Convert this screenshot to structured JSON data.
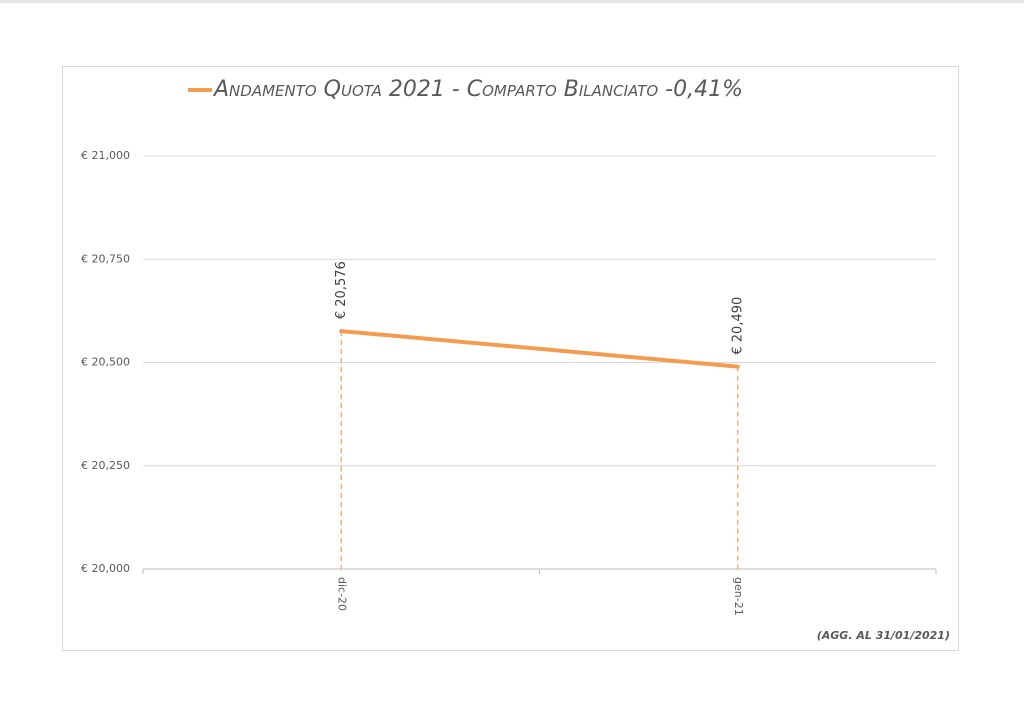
{
  "chart_data": {
    "type": "line",
    "categories": [
      "dic-20",
      "gen-21"
    ],
    "series": [
      {
        "name": "Andamento Quota 2021 - Comparto Bilanciato -0,41%",
        "color": "#f39c4f",
        "values": [
          20.576,
          20.49
        ],
        "value_labels": [
          "€ 20,576",
          "€ 20,490"
        ]
      }
    ],
    "ylim": [
      20,
      21
    ],
    "yticks": [
      {
        "value": 20,
        "label": "€ 20,000"
      },
      {
        "value": 20.25,
        "label": "€ 20,250"
      },
      {
        "value": 20.5,
        "label": "€ 20,500"
      },
      {
        "value": 20.75,
        "label": "€ 20,750"
      },
      {
        "value": 21,
        "label": "€ 21,000"
      }
    ],
    "grid": true,
    "drop_lines": true,
    "annotation": "(AGG. AL 31/01/2021)"
  }
}
